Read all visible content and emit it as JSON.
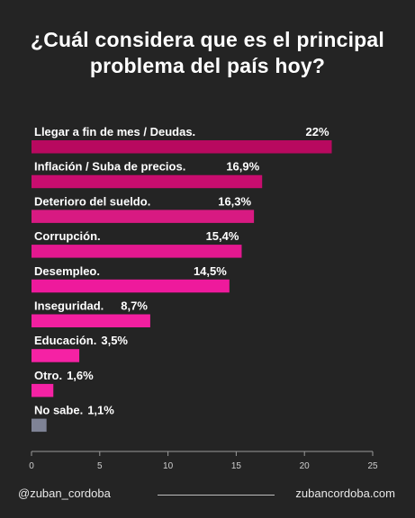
{
  "header": {
    "title_line1": "¿Cuál considera que es el  principal",
    "title_line2": "problema del país hoy?"
  },
  "chart_data": {
    "type": "bar",
    "orientation": "horizontal",
    "title": "¿Cuál considera que es el  principal problema del país hoy?",
    "categories": [
      "Llegar a fin de mes / Deudas.",
      "Inflación / Suba de precios.",
      "Deterioro del sueldo.",
      "Corrupción.",
      "Desempleo.",
      "Inseguridad.",
      "Educación.",
      "Otro.",
      "No sabe."
    ],
    "values": [
      22,
      16.9,
      16.3,
      15.4,
      14.5,
      8.7,
      3.5,
      1.6,
      1.1
    ],
    "value_labels": [
      "22%",
      "16,9%",
      "16,3%",
      "15,4%",
      "14,5%",
      "8,7%",
      "3,5%",
      "1,6%",
      "1,1%"
    ],
    "colors": [
      "#b8095f",
      "#c80d6f",
      "#d81a82",
      "#e3188f",
      "#ee1a9c",
      "#f21fa0",
      "#f522a4",
      "#f522a4",
      "#7f8396"
    ],
    "xlim": [
      0,
      25
    ],
    "x_ticks": [
      0,
      5,
      10,
      15,
      20,
      25
    ],
    "x_tick_labels": [
      "0",
      "5",
      "10",
      "15",
      "20",
      "25"
    ],
    "grid": false,
    "legend": "none"
  },
  "footer": {
    "handle": "@zuban_cordoba",
    "website": "zubancordoba.com"
  }
}
